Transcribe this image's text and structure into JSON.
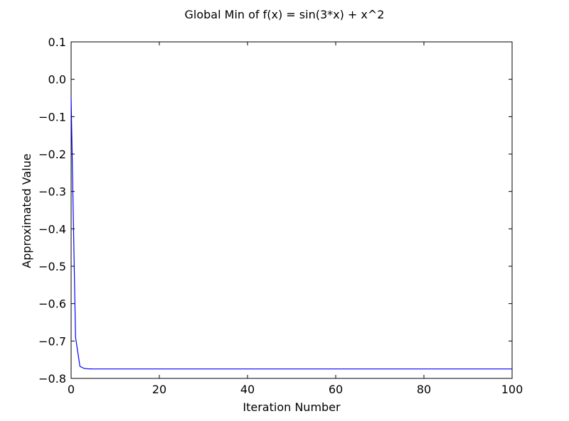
{
  "chart_data": {
    "type": "line",
    "title": "Global Min of f(x) = sin(3*x) + x^2",
    "xlabel": "Iteration Number",
    "ylabel": "Approximated Value",
    "xlim": [
      0,
      100
    ],
    "ylim": [
      -0.8,
      0.1
    ],
    "xticks": [
      "0",
      "20",
      "40",
      "60",
      "80",
      "100"
    ],
    "yticks": [
      "0.1",
      "0.0",
      "−0.1",
      "−0.2",
      "−0.3",
      "−0.4",
      "−0.5",
      "−0.6",
      "−0.7",
      "−0.8"
    ],
    "grid": false,
    "legend": "none",
    "series": [
      {
        "color": "#0000ff",
        "x": [
          0,
          1,
          2,
          3,
          4,
          5,
          6,
          8,
          10,
          20,
          40,
          60,
          80,
          100
        ],
        "y": [
          -0.05,
          -0.69,
          -0.768,
          -0.7735,
          -0.7745,
          -0.7747,
          -0.7747,
          -0.7747,
          -0.7747,
          -0.7747,
          -0.7747,
          -0.7747,
          -0.7747,
          -0.7747
        ]
      }
    ]
  }
}
